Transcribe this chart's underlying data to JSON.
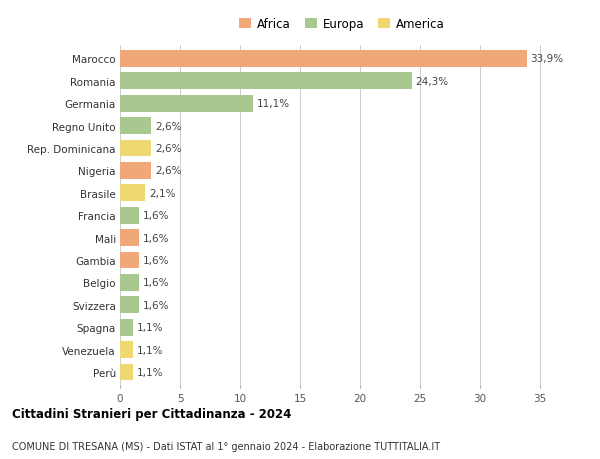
{
  "categories": [
    "Marocco",
    "Romania",
    "Germania",
    "Regno Unito",
    "Rep. Dominicana",
    "Nigeria",
    "Brasile",
    "Francia",
    "Mali",
    "Gambia",
    "Belgio",
    "Svizzera",
    "Spagna",
    "Venezuela",
    "Perù"
  ],
  "values": [
    33.9,
    24.3,
    11.1,
    2.6,
    2.6,
    2.6,
    2.1,
    1.6,
    1.6,
    1.6,
    1.6,
    1.6,
    1.1,
    1.1,
    1.1
  ],
  "continents": [
    "Africa",
    "Europa",
    "Europa",
    "Europa",
    "America",
    "Africa",
    "America",
    "Europa",
    "Africa",
    "Africa",
    "Europa",
    "Europa",
    "Europa",
    "America",
    "America"
  ],
  "labels": [
    "33,9%",
    "24,3%",
    "11,1%",
    "2,6%",
    "2,6%",
    "2,6%",
    "2,1%",
    "1,6%",
    "1,6%",
    "1,6%",
    "1,6%",
    "1,6%",
    "1,1%",
    "1,1%",
    "1,1%"
  ],
  "colors": {
    "Africa": "#f0a87a",
    "Europa": "#a8c890",
    "America": "#f0d870"
  },
  "xlim": [
    0,
    37
  ],
  "xticks": [
    0,
    5,
    10,
    15,
    20,
    25,
    30,
    35
  ],
  "title": "Cittadini Stranieri per Cittadinanza - 2024",
  "subtitle": "COMUNE DI TRESANA (MS) - Dati ISTAT al 1° gennaio 2024 - Elaborazione TUTTITALIA.IT",
  "background_color": "#ffffff",
  "grid_color": "#cccccc",
  "bar_height": 0.75
}
